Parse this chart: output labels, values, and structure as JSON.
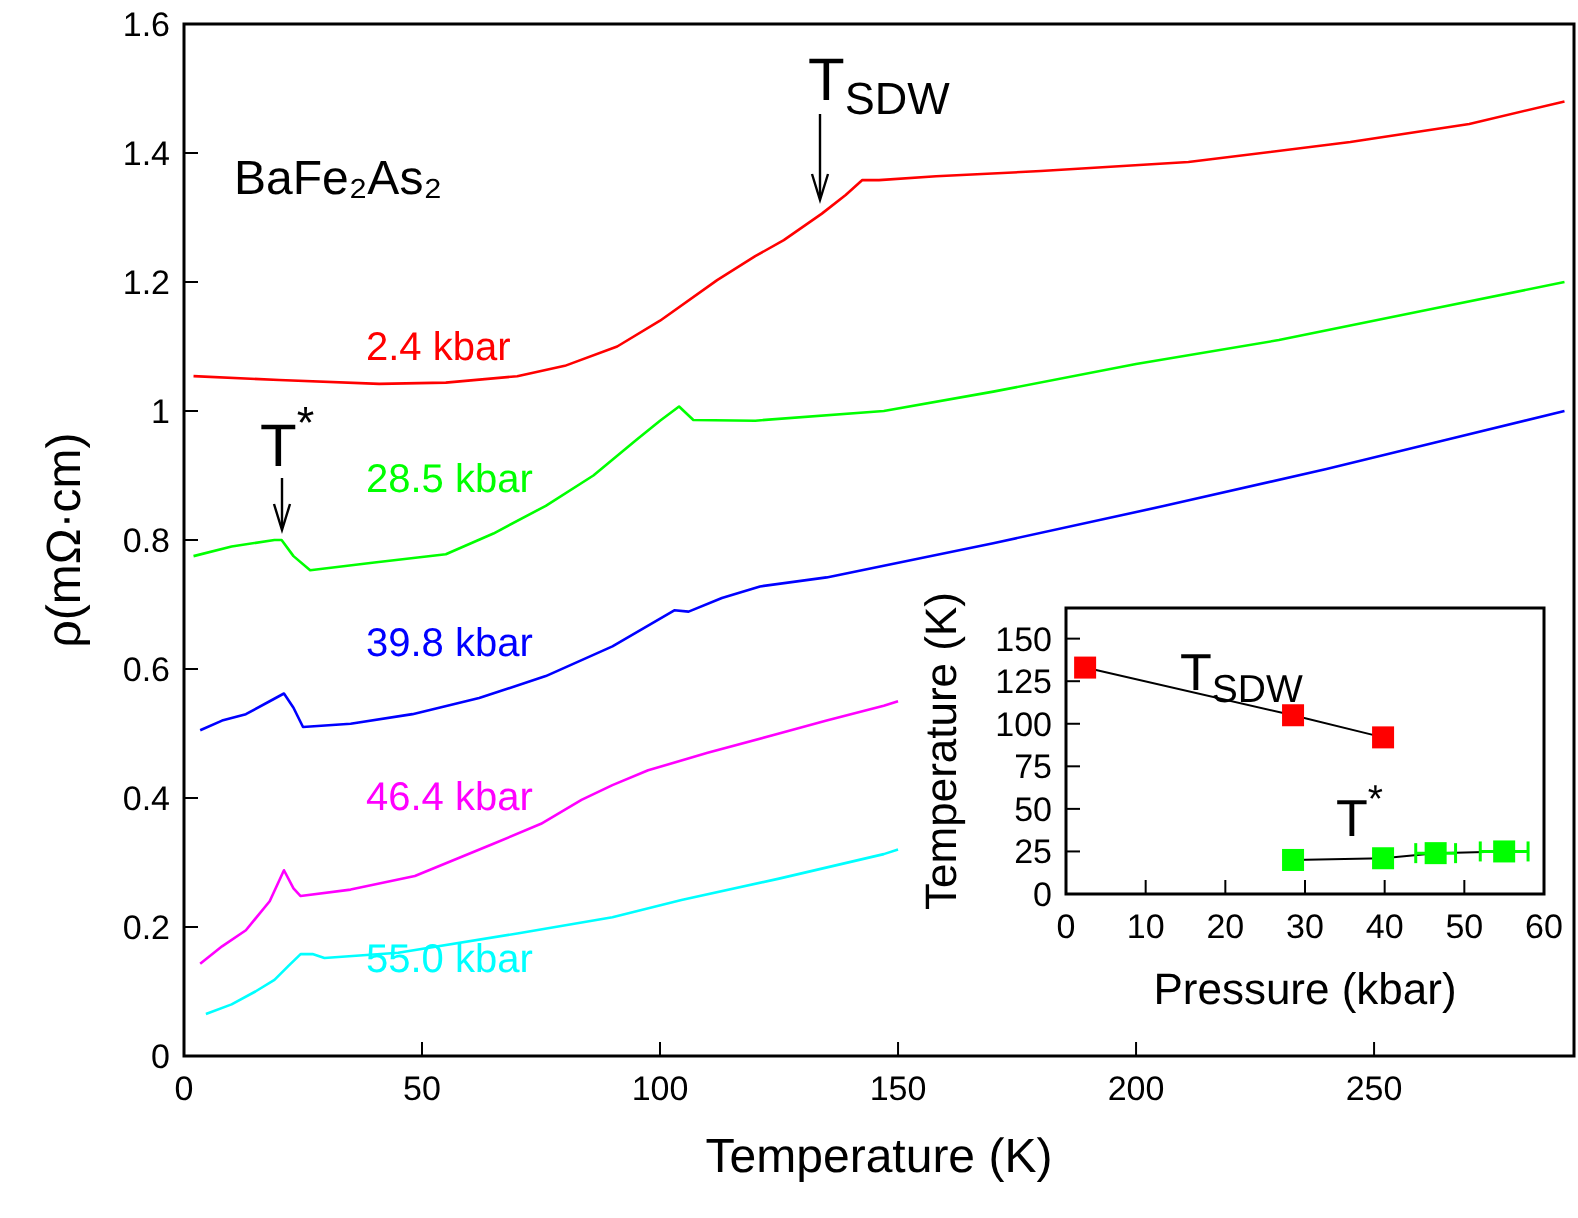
{
  "chart_data": [
    {
      "type": "line",
      "xlabel": "Temperature (K)",
      "ylabel": "ρ(mΩ·cm)",
      "xlim": [
        0,
        292
      ],
      "ylim": [
        0,
        1.6
      ],
      "xticks": [
        0,
        50,
        100,
        150,
        200,
        250
      ],
      "yticks": [
        0,
        0.2,
        0.4,
        0.6,
        0.8,
        1,
        1.2,
        1.4,
        1.6
      ],
      "marker": "none",
      "line_style": "solid",
      "annotations": [
        "BaFe₂As₂",
        "T$_{SDW}$",
        "T$^{*}$"
      ],
      "series": [
        {
          "name": "2.4 kbar",
          "color": "#ff0000",
          "x": [
            2,
            20,
            41,
            55,
            70,
            80,
            91,
            100,
            112,
            120,
            126,
            134,
            139,
            142.5,
            146,
            158,
            180,
            211,
            245,
            270,
            290
          ],
          "values": [
            1.054,
            1.048,
            1.042,
            1.044,
            1.054,
            1.07,
            1.1,
            1.14,
            1.203,
            1.24,
            1.265,
            1.306,
            1.335,
            1.358,
            1.358,
            1.364,
            1.372,
            1.386,
            1.417,
            1.445,
            1.48
          ]
        },
        {
          "name": "28.5 kbar",
          "color": "#00ff00",
          "x": [
            2,
            10,
            19,
            20.5,
            23,
            26.5,
            40,
            55,
            65,
            76,
            86,
            95,
            100,
            104,
            107,
            120,
            147,
            170,
            200,
            230,
            260,
            290
          ],
          "values": [
            0.775,
            0.79,
            0.8,
            0.8,
            0.775,
            0.753,
            0.765,
            0.778,
            0.81,
            0.853,
            0.9,
            0.955,
            0.985,
            1.007,
            0.986,
            0.985,
            1.0,
            1.03,
            1.073,
            1.11,
            1.155,
            1.2
          ]
        },
        {
          "name": "39.8 kbar",
          "color": "#0000ff",
          "x": [
            3.4,
            8,
            13,
            18,
            21,
            23,
            25,
            35,
            48,
            62,
            76,
            90,
            103,
            106,
            113,
            121,
            135,
            147,
            170,
            206,
            240,
            265,
            290
          ],
          "values": [
            0.505,
            0.52,
            0.53,
            0.55,
            0.562,
            0.54,
            0.51,
            0.515,
            0.53,
            0.555,
            0.589,
            0.635,
            0.691,
            0.689,
            0.71,
            0.728,
            0.742,
            0.76,
            0.795,
            0.853,
            0.91,
            0.955,
            1.0
          ]
        },
        {
          "name": "46.4 kbar",
          "color": "#ff00ff",
          "x": [
            3.4,
            8,
            13,
            18,
            21,
            23,
            24.5,
            35,
            48.5,
            65,
            75,
            83.5,
            90,
            97.5,
            110,
            125,
            135,
            147,
            150
          ],
          "values": [
            0.143,
            0.17,
            0.195,
            0.24,
            0.288,
            0.26,
            0.248,
            0.258,
            0.279,
            0.329,
            0.36,
            0.397,
            0.42,
            0.443,
            0.47,
            0.5,
            0.52,
            0.543,
            0.55
          ]
        },
        {
          "name": "55.0 kbar",
          "color": "#00ffff",
          "x": [
            4.6,
            10,
            15,
            19,
            22,
            24.5,
            27,
            29.5,
            45,
            70,
            90,
            104.5,
            125,
            147,
            150
          ],
          "values": [
            0.065,
            0.08,
            0.1,
            0.118,
            0.14,
            0.158,
            0.158,
            0.152,
            0.16,
            0.19,
            0.215,
            0.242,
            0.275,
            0.313,
            0.32
          ]
        }
      ]
    },
    {
      "type": "line",
      "xlabel": "Pressure (kbar)",
      "ylabel": "Temperature (K)",
      "xlim": [
        0,
        60
      ],
      "ylim": [
        0,
        168
      ],
      "xticks": [
        0,
        10,
        20,
        30,
        40,
        50,
        60
      ],
      "yticks": [
        0,
        25,
        50,
        75,
        100,
        125,
        150
      ],
      "marker": "square",
      "line_style": "solid",
      "series": [
        {
          "name": "T$_{SDW}$",
          "color": "#ff0000",
          "x": [
            2.4,
            28.5,
            39.8
          ],
          "values": [
            133,
            105,
            92
          ]
        },
        {
          "name": "T$^{*}$",
          "color": "#00ff00",
          "x": [
            28.5,
            39.8,
            46.4,
            55
          ],
          "values": [
            20,
            21,
            24,
            25
          ],
          "xerrors": [
            null,
            null,
            2.5,
            3
          ]
        }
      ]
    }
  ]
}
